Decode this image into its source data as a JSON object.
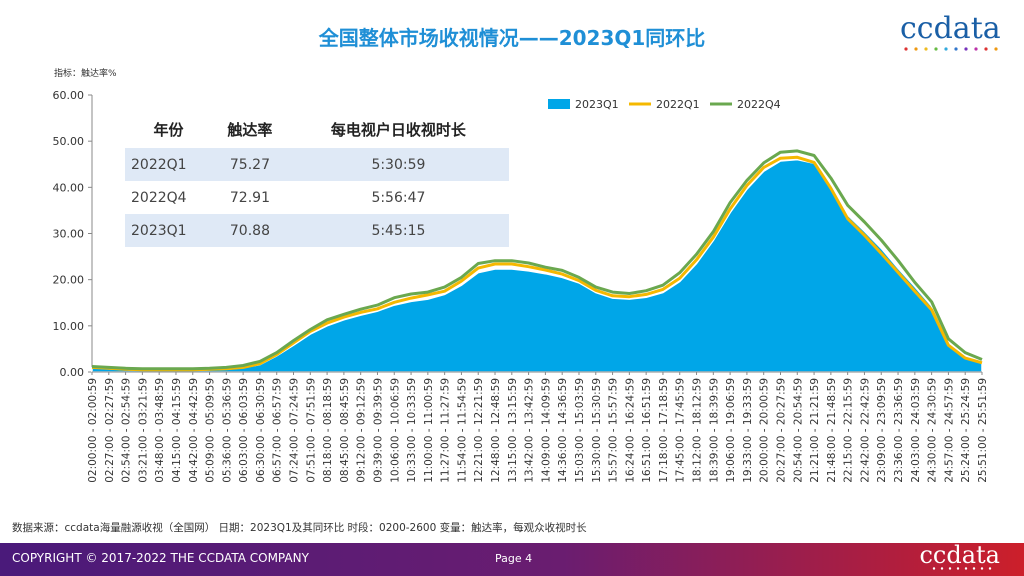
{
  "title": "全国整体市场收视情况——2023Q1同环比",
  "logo": "ccdata",
  "metric_label": "指标：触达率%",
  "table": {
    "headers": [
      "年份",
      "触达率",
      "每电视户日收视时长"
    ],
    "rows": [
      [
        "2022Q1",
        "75.27",
        "5:30:59"
      ],
      [
        "2022Q4",
        "72.91",
        "5:56:47"
      ],
      [
        "2023Q1",
        "70.88",
        "5:45:15"
      ]
    ]
  },
  "source_note": "数据来源：ccdata海量融源收视（全国网）  日期：2023Q1及其同环比  时段：0200-2600  变量：触达率，每观众收视时长",
  "footer": {
    "copyright": "COPYRIGHT © 2017-2022 THE CCDATA COMPANY",
    "page": "Page 4",
    "logo": "ccdata"
  },
  "colors": {
    "area_2023Q1": "#00a6e8",
    "line_2022Q1": "#f5b800",
    "line_2022Q4": "#6aa84f",
    "title": "#1f8fd6"
  },
  "chart_data": {
    "type": "area",
    "ylim": [
      0,
      60
    ],
    "yticks": [
      "0.00",
      "10.00",
      "20.00",
      "30.00",
      "40.00",
      "50.00",
      "60.00"
    ],
    "x_labels": [
      "02:00:00 - 02:00:59",
      "02:27:00 - 02:27:59",
      "02:54:00 - 02:54:59",
      "03:21:00 - 03:21:59",
      "03:48:00 - 03:48:59",
      "04:15:00 - 04:15:59",
      "04:42:00 - 04:42:59",
      "05:09:00 - 05:09:59",
      "05:36:00 - 05:36:59",
      "06:03:00 - 06:03:59",
      "06:30:00 - 06:30:59",
      "06:57:00 - 06:57:59",
      "07:24:00 - 07:24:59",
      "07:51:00 - 07:51:59",
      "08:18:00 - 08:18:59",
      "08:45:00 - 08:45:59",
      "09:12:00 - 09:12:59",
      "09:39:00 - 09:39:59",
      "10:06:00 - 10:06:59",
      "10:33:00 - 10:33:59",
      "11:00:00 - 11:00:59",
      "11:27:00 - 11:27:59",
      "11:54:00 - 11:54:59",
      "12:21:00 - 12:21:59",
      "12:48:00 - 12:48:59",
      "13:15:00 - 13:15:59",
      "13:42:00 - 13:42:59",
      "14:09:00 - 14:09:59",
      "14:36:00 - 14:36:59",
      "15:03:00 - 15:03:59",
      "15:30:00 - 15:30:59",
      "15:57:00 - 15:57:59",
      "16:24:00 - 16:24:59",
      "16:51:00 - 16:51:59",
      "17:18:00 - 17:18:59",
      "17:45:00 - 17:45:59",
      "18:12:00 - 18:12:59",
      "18:39:00 - 18:39:59",
      "19:06:00 - 19:06:59",
      "19:33:00 - 19:33:59",
      "20:00:00 - 20:00:59",
      "20:27:00 - 20:27:59",
      "20:54:00 - 20:54:59",
      "21:21:00 - 21:21:59",
      "21:48:00 - 21:48:59",
      "22:15:00 - 22:15:59",
      "22:42:00 - 22:42:59",
      "23:09:00 - 23:09:59",
      "23:36:00 - 23:36:59",
      "24:03:00 - 24:03:59",
      "24:30:00 - 24:30:59",
      "24:57:00 - 24:57:59",
      "25:24:00 - 25:24:59",
      "25:51:00 - 25:51:59"
    ],
    "legend_position": "top-right",
    "series": [
      {
        "name": "2023Q1",
        "kind": "area",
        "values": [
          0.9,
          0.7,
          0.5,
          0.4,
          0.4,
          0.4,
          0.4,
          0.5,
          0.6,
          0.9,
          1.6,
          3.5,
          5.8,
          8.2,
          10.0,
          11.3,
          12.3,
          13.2,
          14.5,
          15.3,
          15.8,
          16.8,
          18.8,
          21.5,
          22.3,
          22.3,
          21.9,
          21.3,
          20.5,
          19.3,
          17.2,
          16.0,
          15.8,
          16.2,
          17.2,
          19.6,
          23.5,
          28.5,
          34.5,
          39.6,
          43.5,
          45.7,
          46.0,
          45.2,
          40.0,
          34.0,
          30.5,
          26.8,
          22.5,
          18.5,
          14.3,
          6.2,
          3.3,
          2.2
        ]
      },
      {
        "name": "2022Q1",
        "kind": "line",
        "values": [
          1.0,
          0.8,
          0.6,
          0.5,
          0.5,
          0.5,
          0.5,
          0.6,
          0.7,
          1.0,
          1.8,
          3.8,
          6.3,
          8.8,
          10.6,
          11.9,
          12.9,
          13.7,
          15.1,
          16.0,
          16.7,
          17.5,
          19.7,
          22.5,
          23.4,
          23.4,
          22.8,
          22.1,
          21.2,
          19.8,
          17.7,
          16.5,
          16.3,
          16.8,
          17.9,
          20.3,
          24.3,
          29.2,
          35.3,
          40.4,
          44.3,
          46.3,
          46.5,
          45.4,
          39.8,
          33.2,
          29.6,
          25.7,
          21.6,
          17.5,
          13.5,
          5.8,
          3.0,
          2.0
        ]
      },
      {
        "name": "2022Q4",
        "kind": "line",
        "values": [
          1.2,
          1.0,
          0.8,
          0.7,
          0.7,
          0.7,
          0.7,
          0.8,
          1.0,
          1.4,
          2.3,
          4.2,
          6.8,
          9.2,
          11.3,
          12.5,
          13.6,
          14.5,
          16.1,
          16.9,
          17.3,
          18.4,
          20.5,
          23.5,
          24.1,
          24.1,
          23.6,
          22.7,
          22.0,
          20.5,
          18.4,
          17.3,
          17.0,
          17.6,
          18.8,
          21.5,
          25.5,
          30.4,
          36.7,
          41.5,
          45.3,
          47.6,
          47.9,
          46.9,
          42.0,
          36.1,
          32.5,
          28.6,
          24.2,
          19.4,
          15.2,
          7.2,
          4.2,
          2.7
        ]
      }
    ]
  }
}
